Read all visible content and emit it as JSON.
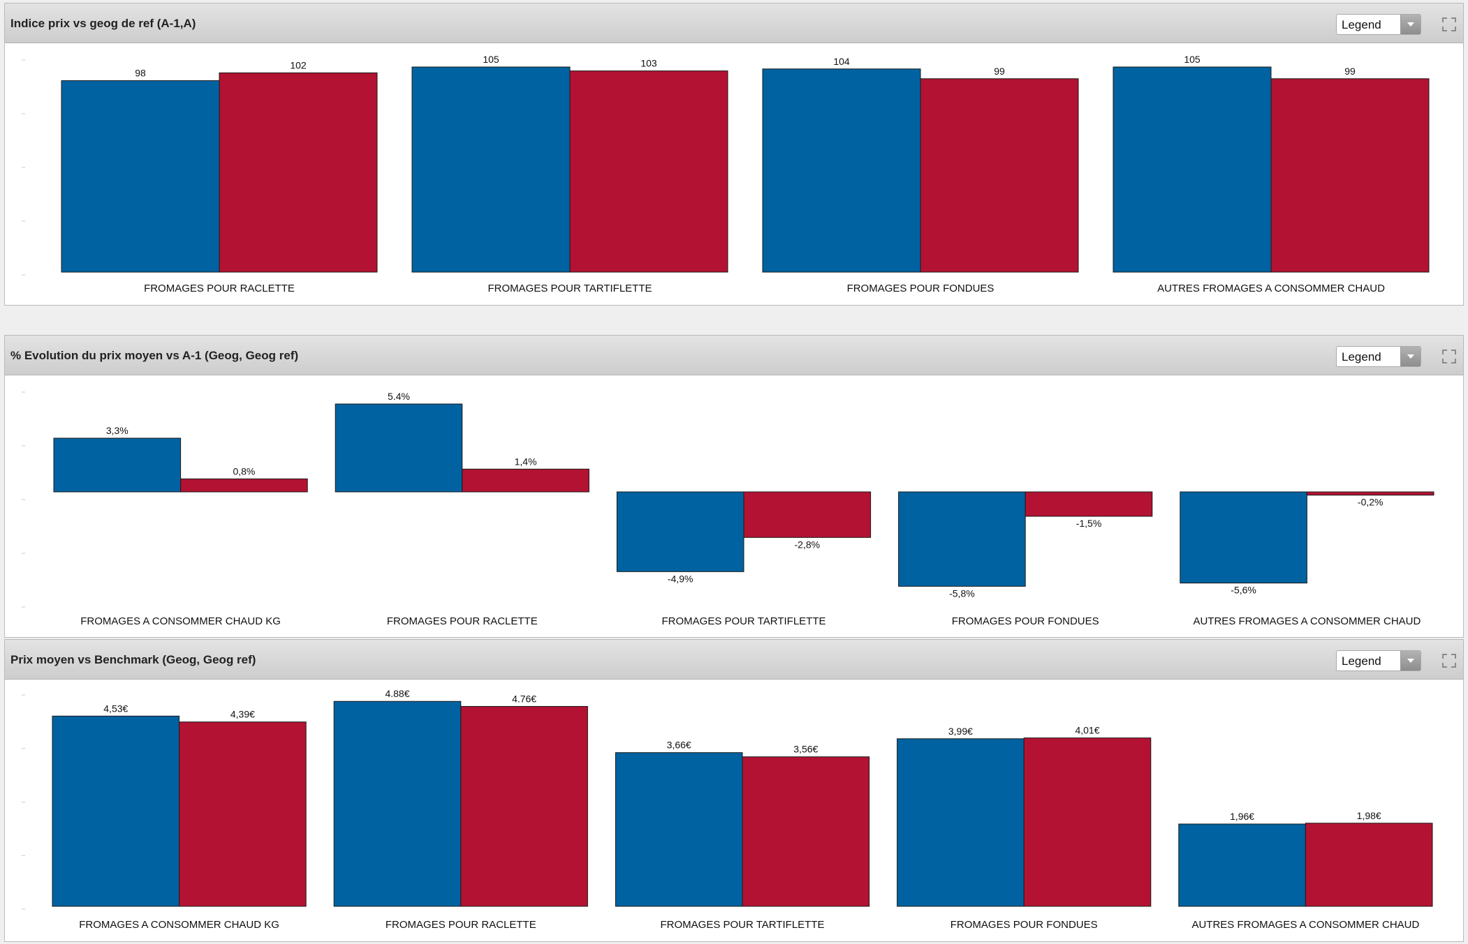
{
  "colors": {
    "series_a": "#0062a0",
    "series_b": "#b31232",
    "bar_stroke": "#1a1a1a"
  },
  "panels": [
    {
      "title": "Indice prix vs geog de ref (A-1,A)",
      "legend_label": "Legend",
      "expand_icon": "expand-icon"
    },
    {
      "title": "% Evolution du prix moyen vs A-1 (Geog, Geog ref)",
      "legend_label": "Legend",
      "expand_icon": "expand-icon"
    },
    {
      "title": "Prix moyen vs Benchmark (Geog, Geog ref)",
      "legend_label": "Legend",
      "expand_icon": "expand-icon"
    }
  ],
  "chart_data": [
    {
      "type": "bar",
      "title": "Indice prix vs geog de ref (A-1,A)",
      "categories": [
        "FROMAGES POUR RACLETTE",
        "FROMAGES POUR TARTIFLETTE",
        "FROMAGES POUR FONDUES",
        "AUTRES FROMAGES A CONSOMMER CHAUD"
      ],
      "series": [
        {
          "values": [
            98,
            105,
            104,
            105
          ],
          "labels": [
            "98",
            "105",
            "104",
            "105"
          ]
        },
        {
          "values": [
            102,
            103,
            99,
            99
          ],
          "labels": [
            "102",
            "103",
            "99",
            "99"
          ]
        }
      ],
      "ylim": [
        0,
        110
      ],
      "grid": false
    },
    {
      "type": "bar",
      "title": "% Evolution du prix moyen vs A-1 (Geog, Geog ref)",
      "categories": [
        "FROMAGES A CONSOMMER CHAUD KG",
        "FROMAGES POUR RACLETTE",
        "FROMAGES POUR TARTIFLETTE",
        "FROMAGES POUR FONDUES",
        "AUTRES FROMAGES A CONSOMMER CHAUD"
      ],
      "series": [
        {
          "values": [
            3.3,
            5.4,
            -4.9,
            -5.8,
            -5.6
          ],
          "labels": [
            "3,3%",
            "5.4%",
            "-4,9%",
            "-5,8%",
            "-5,6%"
          ]
        },
        {
          "values": [
            0.8,
            1.4,
            -2.8,
            -1.5,
            -0.2
          ],
          "labels": [
            "0,8%",
            "1,4%",
            "-2,8%",
            "-1,5%",
            "-0,2%"
          ]
        }
      ],
      "ylim": [
        -6.9,
        6.3
      ],
      "grid": false
    },
    {
      "type": "bar",
      "title": "Prix moyen vs Benchmark (Geog, Geog ref)",
      "categories": [
        "FROMAGES A CONSOMMER CHAUD KG",
        "FROMAGES POUR RACLETTE",
        "FROMAGES POUR TARTIFLETTE",
        "FROMAGES POUR FONDUES",
        "AUTRES FROMAGES A CONSOMMER CHAUD"
      ],
      "series": [
        {
          "values": [
            4.53,
            4.88,
            3.66,
            3.99,
            1.96
          ],
          "labels": [
            "4,53€",
            "4.88€",
            "3,66€",
            "3,99€",
            "1,96€"
          ]
        },
        {
          "values": [
            4.39,
            4.76,
            3.56,
            4.01,
            1.98
          ],
          "labels": [
            "4,39€",
            "4.76€",
            "3,56€",
            "4,01€",
            "1,98€"
          ]
        }
      ],
      "ylim": [
        0,
        5.1
      ],
      "grid": false
    }
  ]
}
